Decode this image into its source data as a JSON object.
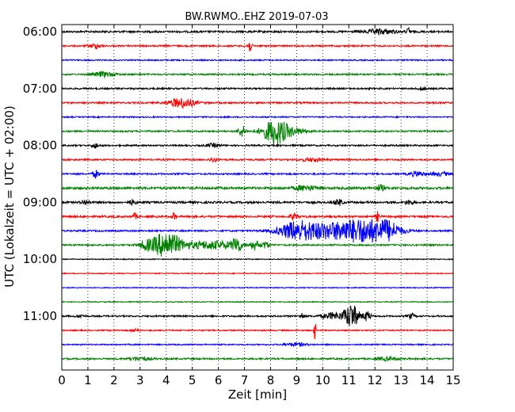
{
  "chart_data": {
    "type": "line",
    "title": "BW.RWMO..EHZ 2019-07-03",
    "xlabel": "Zeit  [min]",
    "ylabel": "UTC (Lokalzeit = UTC + 02:00)",
    "xlim": [
      0,
      15
    ],
    "x_ticks": [
      "0",
      "1",
      "2",
      "3",
      "4",
      "5",
      "6",
      "7",
      "8",
      "9",
      "10",
      "11",
      "12",
      "13",
      "14",
      "15"
    ],
    "y_ticks": [
      {
        "label": "06:00",
        "row": 0
      },
      {
        "label": "07:00",
        "row": 4
      },
      {
        "label": "08:00",
        "row": 8
      },
      {
        "label": "09:00",
        "row": 12
      },
      {
        "label": "10:00",
        "row": 16
      },
      {
        "label": "11:00",
        "row": 20
      }
    ],
    "row_interval_minutes": 15,
    "row_count": 24,
    "grid": {
      "vertical_dotted": true
    },
    "colors": [
      "#000000",
      "#ff0000",
      "#0000ff",
      "#008000"
    ],
    "series": [
      {
        "row": 0,
        "noise": 1.2,
        "events": [
          {
            "t": 12.2,
            "amp": 3,
            "w": 0.4
          },
          {
            "t": 13.3,
            "amp": 5,
            "w": 0.05
          }
        ]
      },
      {
        "row": 1,
        "noise": 1.0,
        "events": [
          {
            "t": 1.3,
            "amp": 3,
            "w": 0.15
          },
          {
            "t": 7.2,
            "amp": 8,
            "w": 0.05
          }
        ]
      },
      {
        "row": 2,
        "noise": 0.8,
        "events": []
      },
      {
        "row": 3,
        "noise": 1.0,
        "events": [
          {
            "t": 1.6,
            "amp": 3,
            "w": 0.3
          }
        ]
      },
      {
        "row": 4,
        "noise": 1.0,
        "events": [
          {
            "t": 13.8,
            "amp": 2,
            "w": 0.1
          }
        ]
      },
      {
        "row": 5,
        "noise": 1.0,
        "events": [
          {
            "t": 4.6,
            "amp": 6,
            "w": 0.35
          }
        ]
      },
      {
        "row": 6,
        "noise": 0.8,
        "events": []
      },
      {
        "row": 7,
        "noise": 1.0,
        "events": [
          {
            "t": 6.9,
            "amp": 7,
            "w": 0.1
          },
          {
            "t": 8.2,
            "amp": 16,
            "w": 0.35
          },
          {
            "t": 9.0,
            "amp": 3,
            "w": 0.3
          }
        ]
      },
      {
        "row": 8,
        "noise": 1.0,
        "events": [
          {
            "t": 1.3,
            "amp": 3,
            "w": 0.1
          },
          {
            "t": 5.8,
            "amp": 2,
            "w": 0.2
          }
        ]
      },
      {
        "row": 9,
        "noise": 1.0,
        "events": [
          {
            "t": 5.8,
            "amp": 3,
            "w": 0.1
          },
          {
            "t": 9.6,
            "amp": 2,
            "w": 0.3
          }
        ]
      },
      {
        "row": 10,
        "noise": 1.0,
        "events": [
          {
            "t": 1.3,
            "amp": 5,
            "w": 0.08
          },
          {
            "t": 13.6,
            "amp": 3,
            "w": 0.2
          },
          {
            "t": 14.5,
            "amp": 2,
            "w": 0.3
          }
        ]
      },
      {
        "row": 11,
        "noise": 1.5,
        "events": [
          {
            "t": 9.3,
            "amp": 3,
            "w": 0.3
          },
          {
            "t": 12.2,
            "amp": 4,
            "w": 0.1
          }
        ]
      },
      {
        "row": 12,
        "noise": 1.3,
        "events": [
          {
            "t": 0.9,
            "amp": 3,
            "w": 0.1
          },
          {
            "t": 2.7,
            "amp": 3,
            "w": 0.1
          },
          {
            "t": 10.6,
            "amp": 4,
            "w": 0.1
          },
          {
            "t": 13.3,
            "amp": 3,
            "w": 0.1
          }
        ]
      },
      {
        "row": 13,
        "noise": 1.2,
        "events": [
          {
            "t": 2.8,
            "amp": 4,
            "w": 0.05
          },
          {
            "t": 4.3,
            "amp": 5,
            "w": 0.05
          },
          {
            "t": 8.9,
            "amp": 4,
            "w": 0.1
          },
          {
            "t": 12.1,
            "amp": 6,
            "w": 0.05
          }
        ]
      },
      {
        "row": 14,
        "noise": 1.0,
        "events": [
          {
            "t": 9.0,
            "amp": 11,
            "w": 0.5
          },
          {
            "t": 10.0,
            "amp": 6,
            "w": 0.6
          },
          {
            "t": 11.5,
            "amp": 15,
            "w": 0.8
          },
          {
            "t": 12.5,
            "amp": 7,
            "w": 0.3
          }
        ]
      },
      {
        "row": 15,
        "noise": 1.0,
        "events": [
          {
            "t": 3.2,
            "amp": 5,
            "w": 0.15
          },
          {
            "t": 4.0,
            "amp": 16,
            "w": 0.4
          },
          {
            "t": 5.8,
            "amp": 5,
            "w": 0.8
          },
          {
            "t": 6.7,
            "amp": 10,
            "w": 0.1
          },
          {
            "t": 7.4,
            "amp": 6,
            "w": 0.1
          },
          {
            "t": 7.8,
            "amp": 4,
            "w": 0.1
          }
        ]
      },
      {
        "row": 16,
        "noise": 0.6,
        "events": []
      },
      {
        "row": 17,
        "noise": 0.6,
        "events": []
      },
      {
        "row": 18,
        "noise": 0.6,
        "events": []
      },
      {
        "row": 19,
        "noise": 0.6,
        "events": []
      },
      {
        "row": 20,
        "noise": 1.0,
        "events": [
          {
            "t": 0.7,
            "amp": 2,
            "w": 0.1
          },
          {
            "t": 9.2,
            "amp": 4,
            "w": 0.05
          },
          {
            "t": 10.4,
            "amp": 4,
            "w": 0.3
          },
          {
            "t": 11.1,
            "amp": 15,
            "w": 0.2
          },
          {
            "t": 11.7,
            "amp": 6,
            "w": 0.1
          },
          {
            "t": 13.4,
            "amp": 3,
            "w": 0.1
          }
        ]
      },
      {
        "row": 21,
        "noise": 0.8,
        "events": [
          {
            "t": 2.8,
            "amp": 2,
            "w": 0.1
          },
          {
            "t": 9.7,
            "amp": 11,
            "w": 0.03
          }
        ]
      },
      {
        "row": 22,
        "noise": 0.8,
        "events": [
          {
            "t": 9.0,
            "amp": 2,
            "w": 0.3
          }
        ]
      },
      {
        "row": 23,
        "noise": 1.0,
        "events": [
          {
            "t": 3.0,
            "amp": 2,
            "w": 0.3
          },
          {
            "t": 12.5,
            "amp": 2,
            "w": 0.3
          }
        ]
      }
    ]
  }
}
